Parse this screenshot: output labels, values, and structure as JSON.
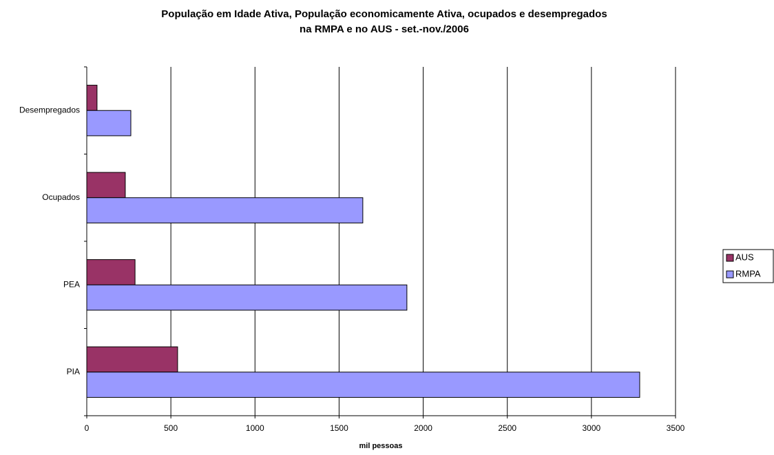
{
  "chart_data": {
    "type": "barh",
    "title": [
      "População em Idade Ativa, População economicamente Ativa, ocupados e desempregados",
      "na RMPA e no AUS - set.-nov./2006"
    ],
    "xlabel": "mil pessoas",
    "categories": [
      "Desempregados",
      "Ocupados",
      "PEA",
      "PIA"
    ],
    "series": [
      {
        "name": "AUS",
        "color": "#993366",
        "values": [
          61,
          229,
          287,
          540
        ]
      },
      {
        "name": "RMPA",
        "color": "#9999ff",
        "values": [
          262,
          1641,
          1903,
          3287
        ]
      }
    ],
    "xlim": [
      0,
      3500
    ],
    "xticks": [
      0,
      500,
      1000,
      1500,
      2000,
      2500,
      3000,
      3500
    ],
    "grid": true,
    "legend": "right"
  }
}
